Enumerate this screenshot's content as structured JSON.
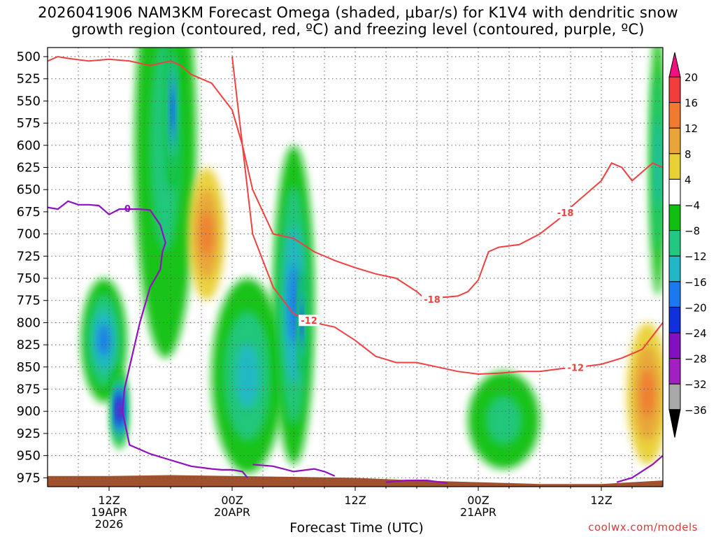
{
  "title": {
    "line1": "2026041906 NAM3KM Forecast Omega (shaded, μbar/s) for K1V4 with dendritic snow",
    "line2": "growth region (contoured, red, ºC) and freezing level (contoured, purple, ºC)"
  },
  "xlabel": "Forecast Time (UTC)",
  "credit": "coolwx.com/models",
  "chart_data": {
    "type": "heatmap",
    "title": "2026041906 NAM3KM Forecast Omega (shaded, μbar/s) for K1V4 with dendritic snow growth region (contoured, red, ºC) and freezing level (contoured, purple, ºC)",
    "xlabel": "Forecast Time (UTC)",
    "ylabel": "",
    "x_range_hours": [
      0,
      60
    ],
    "y_range_hpa": [
      500,
      985
    ],
    "y_ticks": [
      500,
      525,
      550,
      575,
      600,
      625,
      650,
      675,
      700,
      725,
      750,
      775,
      800,
      825,
      850,
      875,
      900,
      925,
      950,
      975
    ],
    "x_ticks": [
      {
        "hour": 6,
        "label": "12Z",
        "sub1": "19APR",
        "sub2": "2026"
      },
      {
        "hour": 18,
        "label": "00Z",
        "sub1": "20APR",
        "sub2": ""
      },
      {
        "hour": 30,
        "label": "12Z",
        "sub1": "",
        "sub2": ""
      },
      {
        "hour": 42,
        "label": "00Z",
        "sub1": "21APR",
        "sub2": ""
      },
      {
        "hour": 54,
        "label": "12Z",
        "sub1": "",
        "sub2": ""
      }
    ],
    "grid": "dotted",
    "colorbar": {
      "labels": [
        "20",
        "16",
        "12",
        "8",
        "4",
        "−4",
        "−8",
        "−12",
        "−16",
        "−20",
        "−24",
        "−28",
        "−32",
        "−36"
      ],
      "colors": [
        "#f0107f",
        "#f53b3b",
        "#f07a30",
        "#e8a53a",
        "#e8d035",
        "#ffffff",
        "#10c010",
        "#20c880",
        "#20b8c8",
        "#1a78f0",
        "#1030e0",
        "#8010c0",
        "#a020c0",
        "#a8a8a8",
        "#000000"
      ]
    },
    "omega_cells": [
      {
        "h": 5.5,
        "p": 820,
        "rh": 2.2,
        "rp": 70,
        "v": -14
      },
      {
        "h": 7.0,
        "p": 898,
        "rh": 0.8,
        "rp": 45,
        "v": -26
      },
      {
        "h": 11.5,
        "p": 600,
        "rh": 3.0,
        "rp": 240,
        "v": -8
      },
      {
        "h": 12.2,
        "p": 560,
        "rh": 0.6,
        "rp": 90,
        "v": -20
      },
      {
        "h": 15.5,
        "p": 700,
        "rh": 1.8,
        "rp": 75,
        "v": 10
      },
      {
        "h": 19.5,
        "p": 860,
        "rh": 3.5,
        "rp": 110,
        "v": -12
      },
      {
        "h": 24.0,
        "p": 780,
        "rh": 2.0,
        "rp": 180,
        "v": -16
      },
      {
        "h": 24.8,
        "p": 800,
        "rh": 0.3,
        "rp": 60,
        "v": -24
      },
      {
        "h": 44.5,
        "p": 910,
        "rh": 3.5,
        "rp": 55,
        "v": -8
      },
      {
        "h": 58.5,
        "p": 880,
        "rh": 2.0,
        "rp": 80,
        "v": 12
      },
      {
        "h": 59.5,
        "p": 620,
        "rh": 0.8,
        "rp": 150,
        "v": -10
      }
    ],
    "dgz_warm": {
      "label": "-12",
      "label_hours": [
        25.5,
        51.5
      ],
      "hours": [
        18,
        19,
        20,
        22,
        24,
        26,
        28,
        30,
        32,
        34,
        36,
        38,
        40,
        42,
        44,
        46,
        48,
        50,
        52,
        54,
        56,
        58,
        60
      ],
      "hpa": [
        500,
        600,
        700,
        760,
        790,
        800,
        805,
        820,
        838,
        845,
        845,
        850,
        855,
        858,
        857,
        855,
        855,
        852,
        850,
        847,
        840,
        830,
        800
      ]
    },
    "dgz_cold": {
      "label": "-18",
      "label_hours": [
        37.5,
        50.5
      ],
      "hours": [
        0,
        1,
        2,
        4,
        6,
        8,
        10,
        12,
        13,
        14,
        15,
        16,
        17,
        18,
        19,
        20,
        22,
        24,
        26,
        28,
        30,
        32,
        34,
        36,
        37,
        38,
        40,
        41,
        42,
        43,
        44,
        46,
        48,
        50,
        51,
        52,
        53,
        54,
        55,
        56,
        57,
        58,
        59,
        60
      ],
      "hpa": [
        505,
        500,
        502,
        505,
        503,
        505,
        510,
        505,
        510,
        520,
        525,
        530,
        545,
        560,
        600,
        650,
        700,
        705,
        720,
        730,
        738,
        745,
        750,
        765,
        775,
        772,
        770,
        765,
        752,
        720,
        715,
        712,
        700,
        682,
        670,
        660,
        650,
        640,
        620,
        625,
        640,
        630,
        620,
        625
      ]
    },
    "freezing_level": {
      "label": "0",
      "label_hours": [
        7.8
      ],
      "segments": [
        {
          "hours": [
            0,
            1,
            2,
            3,
            4,
            5,
            6,
            7,
            8,
            9,
            10,
            11,
            11.5,
            11.2,
            11,
            10,
            9,
            8,
            7.5,
            7.3,
            8,
            9,
            10,
            12,
            14,
            16,
            17,
            18,
            19,
            19.5
          ],
          "hpa": [
            670,
            672,
            663,
            667,
            667,
            668,
            678,
            672,
            672,
            672,
            673,
            690,
            710,
            720,
            740,
            760,
            800,
            850,
            875,
            900,
            938,
            943,
            948,
            955,
            962,
            965,
            966,
            966,
            968,
            975
          ]
        },
        {
          "hours": [
            20,
            22,
            24,
            26,
            27,
            28
          ],
          "hpa": [
            960,
            962,
            968,
            965,
            968,
            973
          ]
        },
        {
          "hours": [
            33,
            35,
            37,
            39
          ],
          "hpa": [
            980,
            978,
            978,
            981
          ]
        },
        {
          "hours": [
            55.5,
            57,
            59,
            60
          ],
          "hpa": [
            980,
            975,
            960,
            950
          ]
        }
      ]
    },
    "ground": {
      "hours": [
        0,
        6,
        12,
        18,
        24,
        30,
        36,
        42,
        48,
        54,
        60
      ],
      "top_hpa": [
        973,
        973,
        972,
        973,
        974,
        975,
        978,
        980,
        982,
        982,
        978
      ]
    }
  }
}
